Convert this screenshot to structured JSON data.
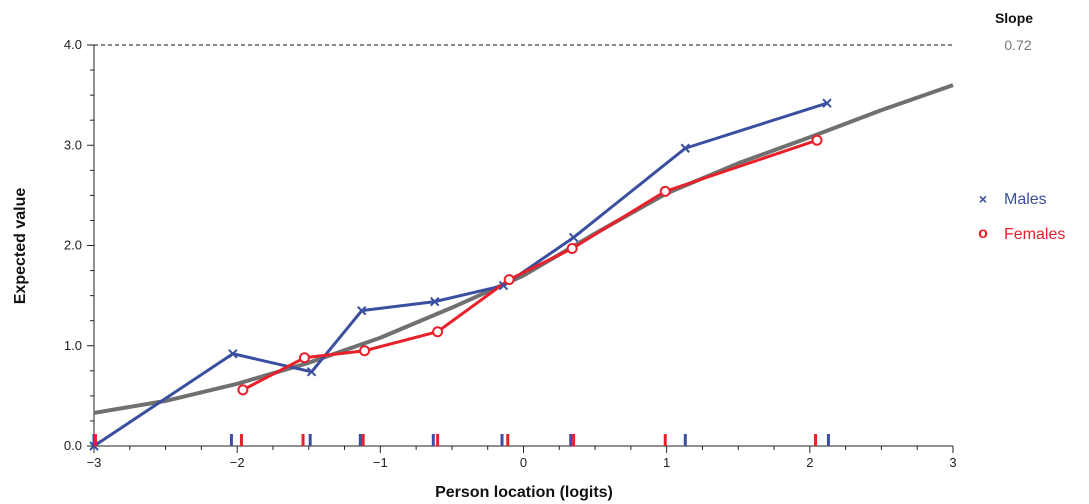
{
  "slope": {
    "title": "Slope",
    "value": "0.72"
  },
  "legend": {
    "males": {
      "label": "Males",
      "marker": "×"
    },
    "females": {
      "label": "Females",
      "marker": "o"
    }
  },
  "colors": {
    "males": "#3a4fa0",
    "females": "#e8202a",
    "expected": "#707070",
    "axis": "#222222"
  },
  "chart_data": {
    "type": "line",
    "xlabel": "Person location (logits)",
    "ylabel": "Expected value",
    "xlim": [
      -3,
      3
    ],
    "ylim": [
      0,
      4
    ],
    "xticks": [
      -3,
      -2,
      -1,
      0,
      1,
      2,
      3
    ],
    "xtick_labels": [
      "−3",
      "−2",
      "−1",
      "0",
      "1",
      "2",
      "3"
    ],
    "yticks": [
      0,
      1,
      2,
      3,
      4
    ],
    "ytick_labels": [
      "0.0",
      "1.0",
      "2.0",
      "3.0",
      "4.0"
    ],
    "reference_line": {
      "y": 4.0,
      "style": "dashed"
    },
    "expected_curve": {
      "x": [
        -3,
        -2.5,
        -2,
        -1.5,
        -1,
        -0.5,
        0,
        0.5,
        1,
        1.5,
        2,
        2.5,
        3
      ],
      "y": [
        0.33,
        0.45,
        0.62,
        0.83,
        1.08,
        1.38,
        1.7,
        2.12,
        2.52,
        2.82,
        3.08,
        3.35,
        3.6
      ]
    },
    "series": [
      {
        "name": "Males",
        "marker": "x",
        "x": [
          -3.0,
          -2.03,
          -1.48,
          -1.13,
          -0.62,
          -0.14,
          0.35,
          1.13,
          2.12
        ],
        "y": [
          0.0,
          0.92,
          0.74,
          1.35,
          1.44,
          1.6,
          2.08,
          2.97,
          3.42
        ]
      },
      {
        "name": "Females",
        "marker": "o",
        "x": [
          -1.96,
          -1.53,
          -1.11,
          -0.6,
          -0.1,
          0.34,
          0.99,
          2.05
        ],
        "y": [
          0.56,
          0.88,
          0.95,
          1.14,
          1.66,
          1.97,
          2.54,
          3.05
        ]
      }
    ],
    "rug": {
      "males": [
        -3.0,
        -2.04,
        -1.49,
        -1.14,
        -0.63,
        -0.15,
        0.33,
        1.13,
        2.13
      ],
      "females": [
        -2.99,
        -1.97,
        -1.54,
        -1.12,
        -0.6,
        -0.11,
        0.35,
        0.99,
        2.04
      ]
    }
  }
}
